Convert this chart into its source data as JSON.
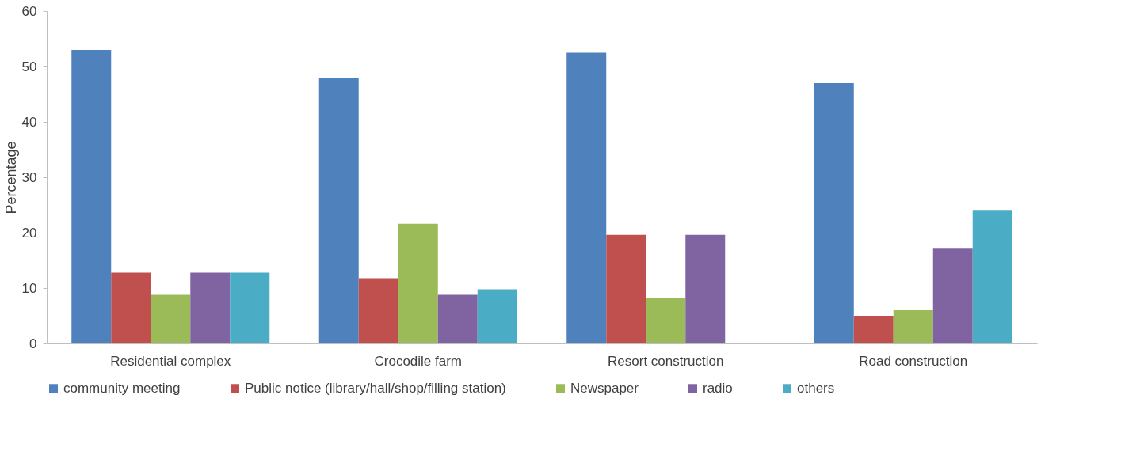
{
  "chart_data": {
    "type": "bar",
    "ylabel": "Percentage",
    "categories": [
      "Residential complex",
      "Crocodile farm",
      "Resort construction",
      "Road construction"
    ],
    "series": [
      {
        "name": "community meeting",
        "color": "#4f81bd",
        "values": [
          53,
          48,
          52.5,
          47
        ]
      },
      {
        "name": "Public notice (library/hall/shop/filling station)",
        "color": "#c0504d",
        "values": [
          12.8,
          11.8,
          19.6,
          5
        ]
      },
      {
        "name": "Newspaper",
        "color": "#9bbb59",
        "values": [
          8.8,
          21.6,
          8.2,
          6
        ]
      },
      {
        "name": "radio",
        "color": "#8064a2",
        "values": [
          12.8,
          8.8,
          19.6,
          17.1
        ]
      },
      {
        "name": "others",
        "color": "#4bacc6",
        "values": [
          12.8,
          9.8,
          0,
          24.1
        ]
      }
    ],
    "ylim": [
      0,
      60
    ],
    "yticks": [
      0,
      10,
      20,
      30,
      40,
      50,
      60
    ],
    "grid": false,
    "legend": "bottom"
  }
}
